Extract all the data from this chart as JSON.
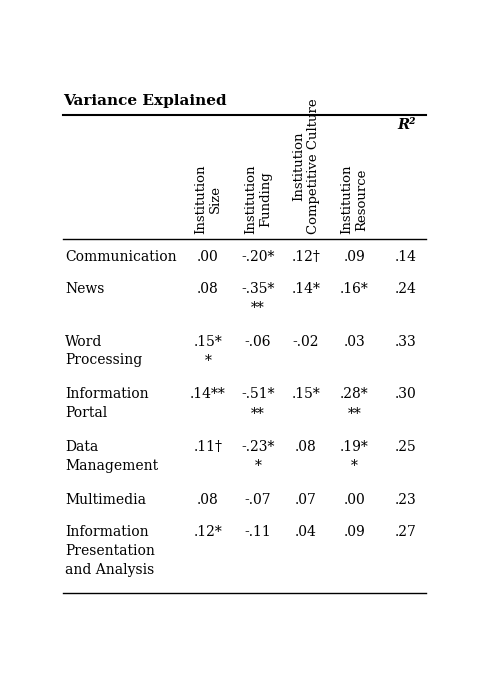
{
  "title": "Variance Explained",
  "col_headers": [
    "Institution\nSize",
    "Institution\nFunding",
    "Institution\nCompetitive Culture",
    "Institution\nResource",
    "R²"
  ],
  "row_labels": [
    [
      "Communication"
    ],
    [
      "News"
    ],
    [
      "Word",
      "Processing"
    ],
    [
      "Information",
      "Portal"
    ],
    [
      "Data",
      "Management"
    ],
    [
      "Multimedia"
    ],
    [
      "Information",
      "Presentation",
      "and Analysis"
    ]
  ],
  "data": [
    [
      ".00",
      "-.20*",
      ".12†",
      ".09",
      ".14"
    ],
    [
      ".08",
      "-.35*\n**",
      ".14*",
      ".16*",
      ".24"
    ],
    [
      ".15*\n*",
      "-.06",
      "-.02",
      ".03",
      ".33"
    ],
    [
      ".14**",
      "-.51*\n**",
      ".15*",
      ".28*\n**",
      ".30"
    ],
    [
      ".11†",
      "-.23*\n*",
      ".08",
      ".19*\n*",
      ".25"
    ],
    [
      ".08",
      "-.07",
      ".07",
      ".00",
      ".23"
    ],
    [
      ".12*",
      "-.11",
      ".04",
      ".09",
      ".27"
    ]
  ],
  "bg_color": "#ffffff",
  "text_color": "#000000",
  "line_color": "#000000",
  "title_fontsize": 11,
  "body_fontsize": 10,
  "header_fontsize": 9.5
}
